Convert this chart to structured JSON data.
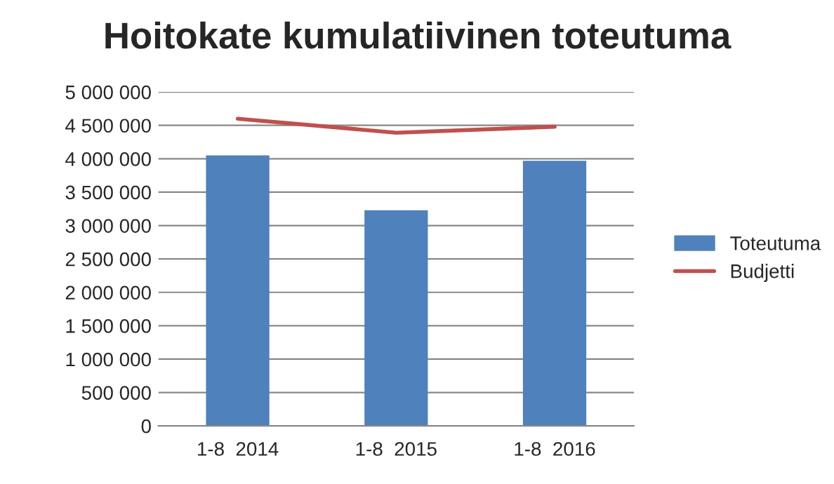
{
  "chart_data": {
    "type": "bar",
    "title": "Hoitokate kumulatiivinen toteutuma",
    "categories": [
      "1-8  2014",
      "1-8  2015",
      "1-8  2016"
    ],
    "series": [
      {
        "name": "Toteutuma",
        "color": "#4f81bd",
        "values": [
          4050000,
          3230000,
          3970000
        ]
      },
      {
        "name": "Budjetti",
        "type": "line",
        "color": "#c0504d",
        "values": [
          4600000,
          4390000,
          4480000
        ]
      }
    ],
    "ylim": [
      0,
      5000000
    ],
    "yticks": [
      {
        "value": 0,
        "label": "0"
      },
      {
        "value": 500000,
        "label": "500 000"
      },
      {
        "value": 1000000,
        "label": "1 000 000"
      },
      {
        "value": 1500000,
        "label": "1 500 000"
      },
      {
        "value": 2000000,
        "label": "2 000 000"
      },
      {
        "value": 2500000,
        "label": "2 500 000"
      },
      {
        "value": 3000000,
        "label": "3 000 000"
      },
      {
        "value": 3500000,
        "label": "3 500 000"
      },
      {
        "value": 4000000,
        "label": "4 000 000"
      },
      {
        "value": 4500000,
        "label": "4 500 000"
      },
      {
        "value": 5000000,
        "label": "5 000 000"
      }
    ],
    "grid": "y",
    "legend": "right",
    "marker": "none",
    "line_style": "solid"
  }
}
